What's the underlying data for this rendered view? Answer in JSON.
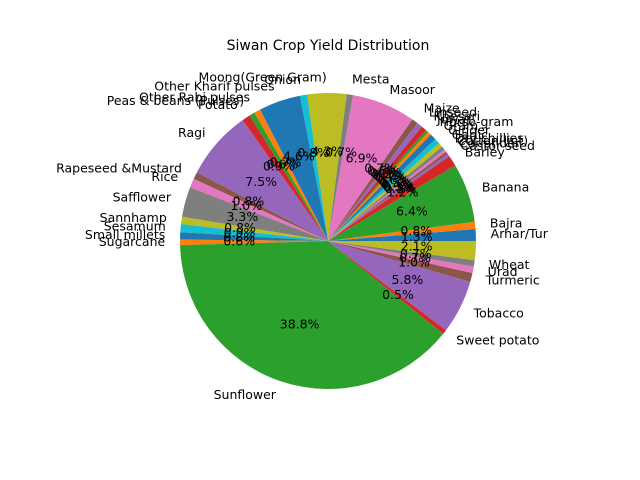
{
  "chart_data": {
    "type": "pie",
    "title": "Siwan Crop Yield Distribution",
    "start_angle_deg": 0,
    "direction": "counterclockwise",
    "autopct_format": "{:.1f}%",
    "slices": [
      {
        "label": "Arhar/Tur",
        "value": 1.3,
        "color": "#1f77b4"
      },
      {
        "label": "Bajra",
        "value": 0.8,
        "color": "#ff7f0e"
      },
      {
        "label": "Banana",
        "value": 6.5,
        "color": "#2ca02c"
      },
      {
        "label": "Barley",
        "value": 1.2,
        "color": "#d62728"
      },
      {
        "label": "Castor seed",
        "value": 0.3,
        "color": "#9467bd"
      },
      {
        "label": "Coriander",
        "value": 0.3,
        "color": "#8c564b"
      },
      {
        "label": "Cotton(lint)",
        "value": 0.3,
        "color": "#e377c2"
      },
      {
        "label": "Dry chillies",
        "value": 0.4,
        "color": "#7f7f7f"
      },
      {
        "label": "Garlic",
        "value": 0.5,
        "color": "#bcbd22"
      },
      {
        "label": "Ginger",
        "value": 0.6,
        "color": "#17becf"
      },
      {
        "label": "Gram",
        "value": 0.7,
        "color": "#1f77b4"
      },
      {
        "label": "Horse-gram",
        "value": 0.4,
        "color": "#ff7f0e"
      },
      {
        "label": "Jowar",
        "value": 0.3,
        "color": "#2ca02c"
      },
      {
        "label": "Khesari",
        "value": 0.6,
        "color": "#d62728"
      },
      {
        "label": "Linseed",
        "value": 0.6,
        "color": "#9467bd"
      },
      {
        "label": "Maize",
        "value": 0.7,
        "color": "#8c564b"
      },
      {
        "label": "Masoor",
        "value": 7.0,
        "color": "#e377c2"
      },
      {
        "label": "Mesta",
        "value": 0.7,
        "color": "#7f7f7f"
      },
      {
        "label": "Moong(Green Gram)",
        "value": 4.3,
        "color": "#bcbd22"
      },
      {
        "label": "Onion",
        "value": 0.8,
        "color": "#17becf"
      },
      {
        "label": "Other Kharif pulses",
        "value": 4.6,
        "color": "#1f77b4"
      },
      {
        "label": "Other Rabi pulses",
        "value": 0.7,
        "color": "#ff7f0e"
      },
      {
        "label": "Peas & beans (Pulses)",
        "value": 0.6,
        "color": "#2ca02c"
      },
      {
        "label": "Potato",
        "value": 0.9,
        "color": "#d62728"
      },
      {
        "label": "Ragi",
        "value": 7.6,
        "color": "#9467bd"
      },
      {
        "label": "Rapeseed &Mustard",
        "value": 0.8,
        "color": "#8c564b"
      },
      {
        "label": "Rice",
        "value": 1.0,
        "color": "#e377c2"
      },
      {
        "label": "Safflower",
        "value": 3.3,
        "color": "#7f7f7f"
      },
      {
        "label": "Sannhamp",
        "value": 0.8,
        "color": "#bcbd22"
      },
      {
        "label": "Sesamum",
        "value": 0.9,
        "color": "#17becf"
      },
      {
        "label": "Small millets",
        "value": 0.8,
        "color": "#1f77b4"
      },
      {
        "label": "Sugarcane",
        "value": 0.6,
        "color": "#ff7f0e"
      },
      {
        "label": "Sunflower",
        "value": 39.1,
        "color": "#2ca02c"
      },
      {
        "label": "Sweet potato",
        "value": 0.5,
        "color": "#d62728"
      },
      {
        "label": "Tobacco",
        "value": 5.9,
        "color": "#9467bd"
      },
      {
        "label": "Turmeric",
        "value": 1.0,
        "color": "#8c564b"
      },
      {
        "label": "Urad",
        "value": 0.7,
        "color": "#e377c2"
      },
      {
        "label": "Wheat",
        "value": 0.7,
        "color": "#7f7f7f"
      },
      {
        "label": "",
        "value": 2.1,
        "color": "#bcbd22"
      }
    ]
  }
}
